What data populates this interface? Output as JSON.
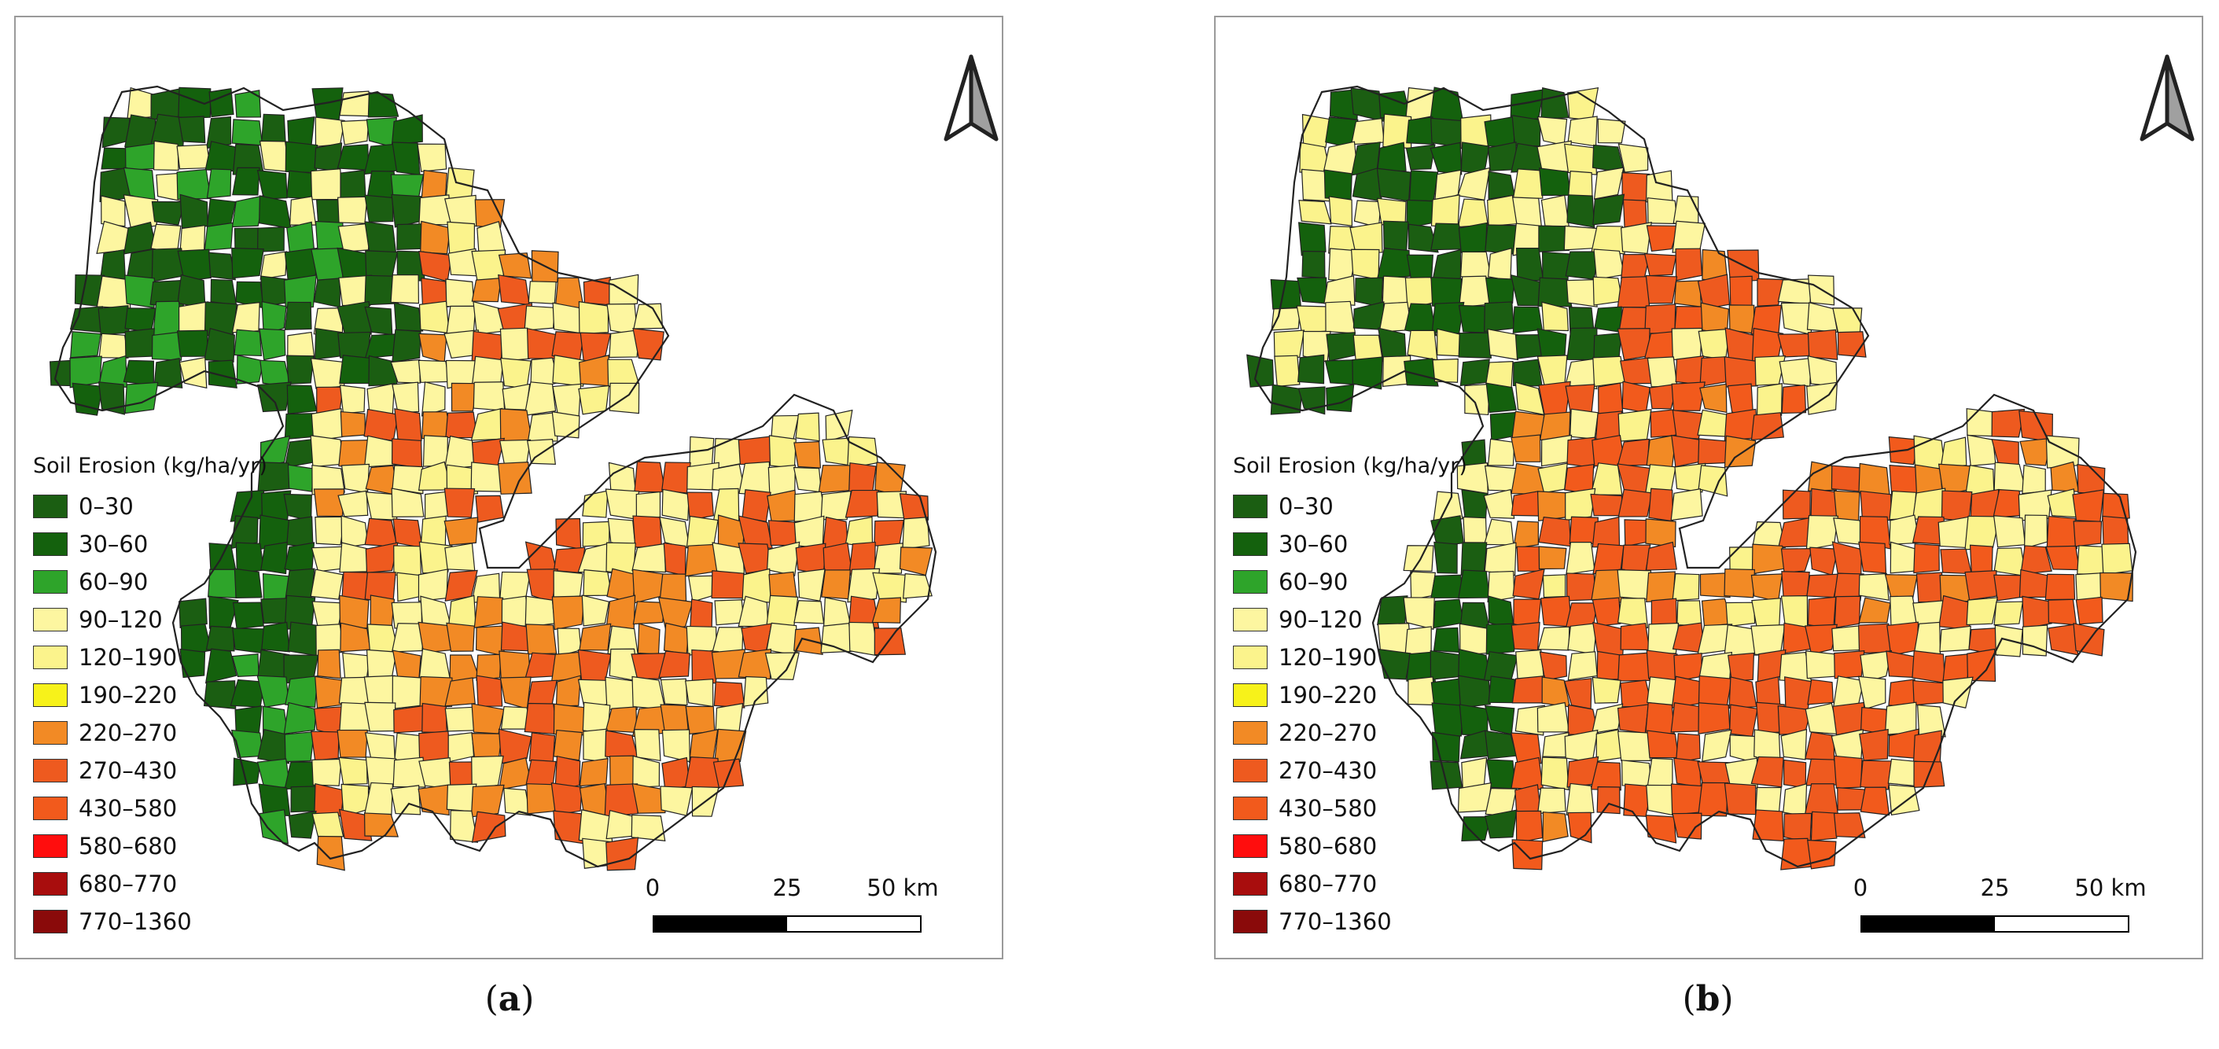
{
  "legend": {
    "title": "Soil Erosion (kg/ha/yr)",
    "classes": [
      {
        "label": "0–30",
        "color": "#1b5e12"
      },
      {
        "label": "30–60",
        "color": "#14610d"
      },
      {
        "label": "60–90",
        "color": "#2ea42a"
      },
      {
        "label": "90–120",
        "color": "#fdf6a0"
      },
      {
        "label": "120–190",
        "color": "#fbf38c"
      },
      {
        "label": "190–220",
        "color": "#f7f21a"
      },
      {
        "label": "220–270",
        "color": "#f28a25"
      },
      {
        "label": "270–430",
        "color": "#ee5a1f"
      },
      {
        "label": "430–580",
        "color": "#f25a1c"
      },
      {
        "label": "580–680",
        "color": "#ff0d0d"
      },
      {
        "label": "680–770",
        "color": "#a80d0d"
      },
      {
        "label": "770–1360",
        "color": "#8a0a0a"
      }
    ]
  },
  "scale": {
    "labels": [
      "0",
      "25",
      "50 km"
    ]
  },
  "panels": [
    {
      "id": "a",
      "caption_open": "(",
      "caption_letter": "a",
      "caption_close": ")"
    },
    {
      "id": "b",
      "caption_open": "(",
      "caption_letter": "b",
      "caption_close": ")"
    }
  ],
  "map_data": {
    "panel_a_mix": [
      0,
      1,
      2,
      3,
      4,
      3,
      6,
      7,
      3,
      2,
      4,
      6
    ],
    "panel_b_mix": [
      0,
      1,
      3,
      4,
      6,
      7,
      8,
      3,
      7,
      2,
      6,
      7
    ]
  },
  "colors": {
    "border": "#222222",
    "frame": "#9a9a9a"
  }
}
